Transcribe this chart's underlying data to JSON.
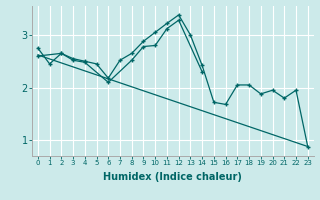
{
  "xlabel": "Humidex (Indice chaleur)",
  "bg_color": "#cceaea",
  "grid_color": "#aad4d4",
  "line_color": "#006666",
  "xlim": [
    -0.5,
    23.5
  ],
  "ylim": [
    0.7,
    3.55
  ],
  "yticks": [
    1,
    2,
    3
  ],
  "xticks": [
    0,
    1,
    2,
    3,
    4,
    5,
    6,
    7,
    8,
    9,
    10,
    11,
    12,
    13,
    14,
    15,
    16,
    17,
    18,
    19,
    20,
    21,
    22,
    23
  ],
  "line1_x": [
    0,
    1,
    2,
    3,
    4,
    5,
    6,
    7,
    8,
    9,
    10,
    11,
    12,
    13,
    14,
    15,
    16,
    17,
    18,
    19,
    20,
    21,
    22,
    23
  ],
  "line1_y": [
    2.75,
    2.45,
    2.65,
    2.55,
    2.5,
    2.45,
    2.18,
    2.52,
    2.65,
    2.88,
    3.05,
    3.22,
    3.38,
    3.0,
    2.42,
    1.72,
    1.68,
    2.05,
    2.05,
    1.88,
    1.95,
    1.8,
    1.95,
    0.88
  ],
  "line2_x": [
    0,
    2,
    3,
    4,
    6,
    8,
    9,
    10,
    11,
    12,
    14
  ],
  "line2_y": [
    2.6,
    2.65,
    2.52,
    2.48,
    2.1,
    2.52,
    2.78,
    2.8,
    3.12,
    3.28,
    2.3
  ],
  "line3_x": [
    0,
    23
  ],
  "line3_y": [
    2.62,
    0.88
  ]
}
